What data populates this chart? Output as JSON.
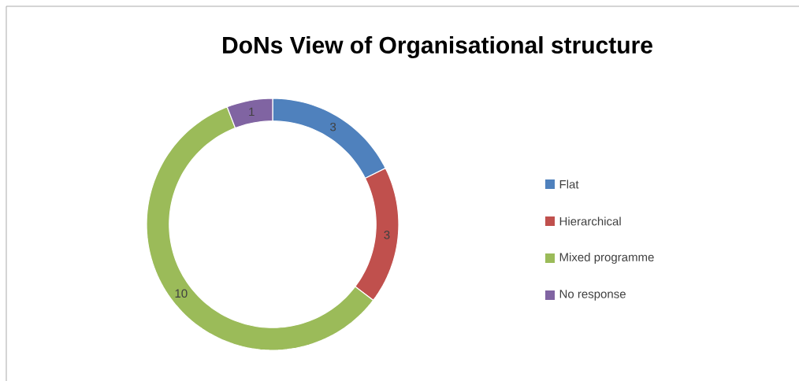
{
  "chart_data": {
    "type": "donut",
    "title": "DoNs View of Organisational structure",
    "categories": [
      "Flat",
      "Hierarchical",
      "Mixed programme",
      "No response"
    ],
    "values": [
      3,
      3,
      10,
      1
    ],
    "colors": [
      "#4f81bd",
      "#c0504d",
      "#9bbb59",
      "#8064a2"
    ],
    "data_labels": true,
    "legend": "right"
  }
}
